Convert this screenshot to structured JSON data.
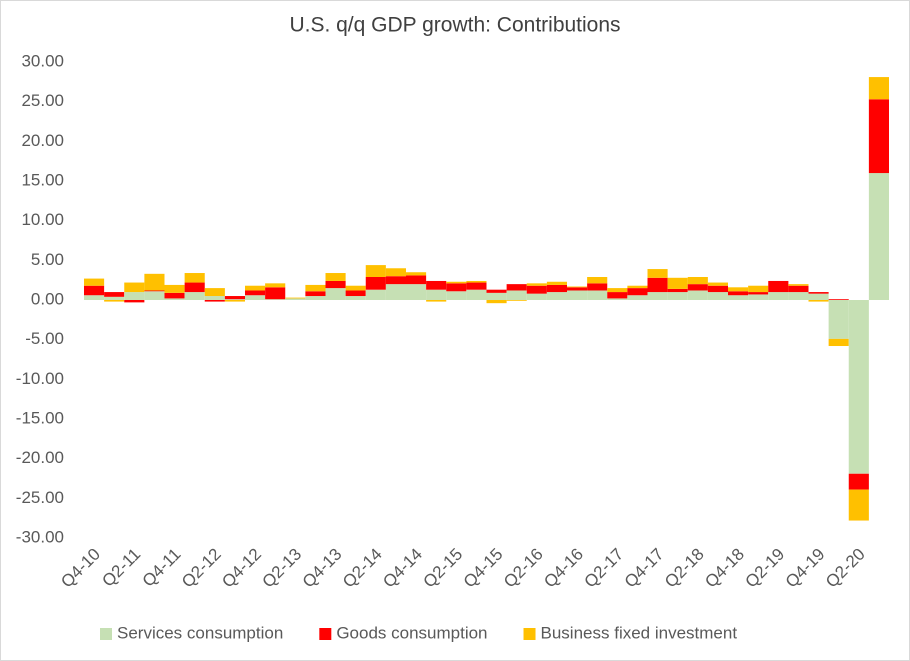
{
  "chart_data": {
    "type": "stacked_bar",
    "title": "U.S. q/q GDP growth: Contributions",
    "categories": [
      "Q4-10",
      null,
      "Q2-11",
      null,
      "Q4-11",
      null,
      "Q2-12",
      null,
      "Q4-12",
      null,
      "Q2-13",
      null,
      "Q4-13",
      null,
      "Q2-14",
      null,
      "Q4-14",
      null,
      "Q2-15",
      null,
      "Q4-15",
      null,
      "Q2-16",
      null,
      "Q4-16",
      null,
      "Q2-17",
      null,
      "Q4-17",
      null,
      "Q2-18",
      null,
      "Q4-18",
      null,
      "Q2-19",
      null,
      "Q4-19",
      null,
      "Q2-20",
      null
    ],
    "series": [
      {
        "name": "Services consumption",
        "color": "#c6e0b4",
        "values": [
          0.6,
          0.4,
          1.0,
          1.1,
          0.2,
          1.0,
          0.5,
          0.1,
          0.6,
          0.1,
          0.2,
          0.5,
          1.5,
          0.5,
          1.3,
          2.0,
          2.0,
          1.3,
          1.1,
          1.3,
          0.9,
          1.2,
          0.8,
          1.0,
          1.2,
          1.2,
          0.2,
          0.6,
          1.0,
          1.0,
          1.2,
          1.0,
          0.6,
          0.7,
          1.0,
          1.0,
          0.8,
          -4.9,
          -21.9,
          16.0
        ]
      },
      {
        "name": "Goods consumption",
        "color": "#ff0000",
        "values": [
          1.2,
          0.6,
          -0.3,
          0.1,
          0.7,
          1.2,
          -0.2,
          0.4,
          0.6,
          1.5,
          0.0,
          0.6,
          0.9,
          0.7,
          1.6,
          1.0,
          1.1,
          1.1,
          1.0,
          0.9,
          0.4,
          0.8,
          1.0,
          0.9,
          0.4,
          0.9,
          0.8,
          0.9,
          1.8,
          0.4,
          0.8,
          0.8,
          0.5,
          0.3,
          1.4,
          0.8,
          0.2,
          0.1,
          -2.0,
          9.3
        ]
      },
      {
        "name": "Business fixed investment",
        "color": "#ffc000",
        "values": [
          0.9,
          -0.2,
          1.2,
          2.1,
          1.0,
          1.2,
          1.0,
          -0.2,
          0.6,
          0.5,
          0.1,
          0.8,
          1.0,
          0.6,
          1.5,
          1.0,
          0.4,
          -0.2,
          0.2,
          0.2,
          -0.4,
          -0.1,
          0.3,
          0.4,
          0.1,
          0.8,
          0.5,
          0.3,
          1.1,
          1.4,
          0.9,
          0.4,
          0.5,
          0.8,
          0.0,
          0.2,
          -0.2,
          -0.9,
          -3.9,
          2.8
        ]
      }
    ],
    "ylim": [
      -30,
      30
    ],
    "yticks": [
      {
        "value": -30,
        "label": "-30.00"
      },
      {
        "value": -25,
        "label": "-25.00"
      },
      {
        "value": -20,
        "label": "-20.00"
      },
      {
        "value": -15,
        "label": "-15.00"
      },
      {
        "value": -10,
        "label": "-10.00"
      },
      {
        "value": -5,
        "label": "-5.00"
      },
      {
        "value": 0,
        "label": "0.00"
      },
      {
        "value": 5,
        "label": "5.00"
      },
      {
        "value": 10,
        "label": "10.00"
      },
      {
        "value": 15,
        "label": "15.00"
      },
      {
        "value": 20,
        "label": "20.00"
      },
      {
        "value": 25,
        "label": "25.00"
      },
      {
        "value": 30,
        "label": "30.00"
      }
    ],
    "grid": false,
    "legend": "bottom"
  }
}
